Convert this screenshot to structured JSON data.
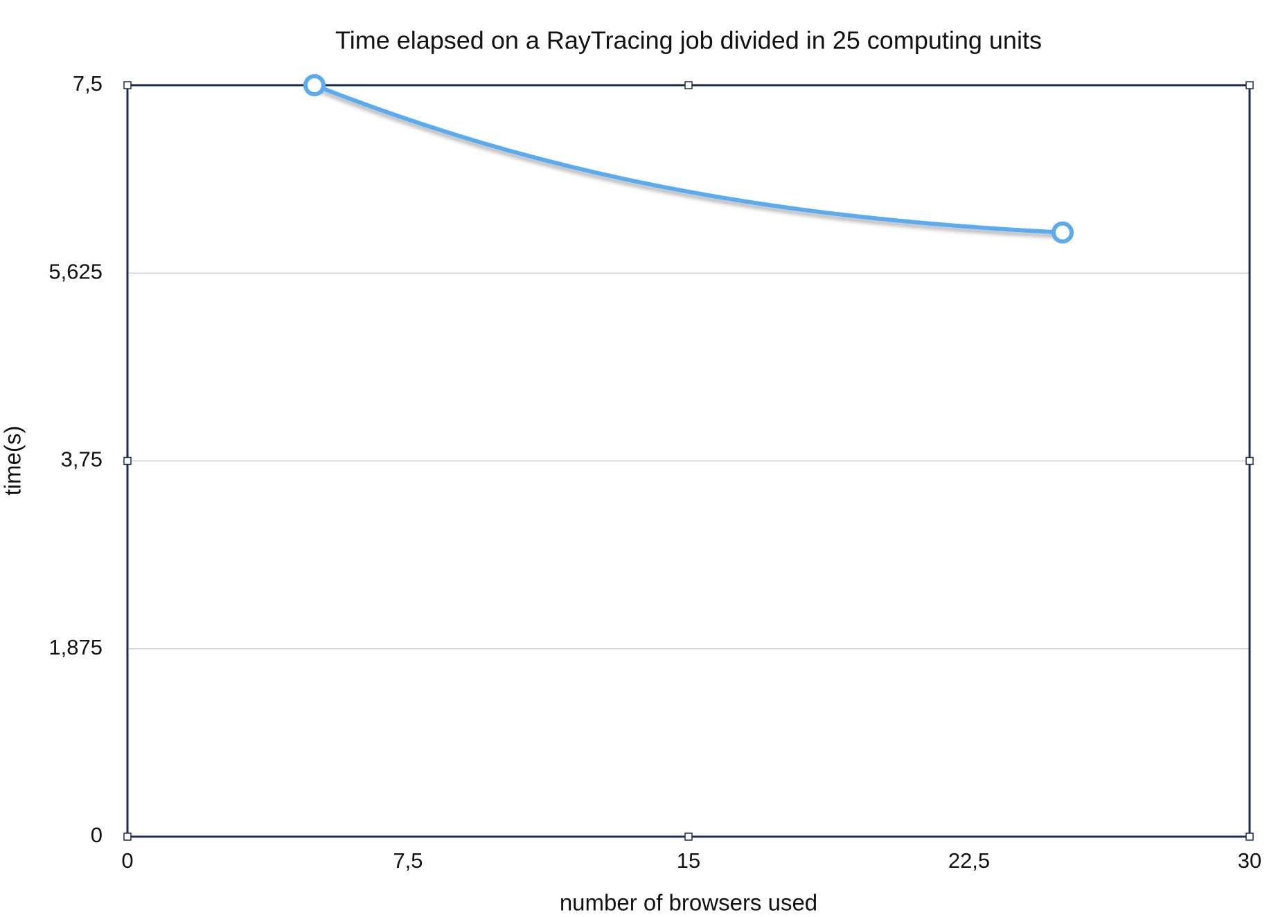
{
  "chart_data": {
    "type": "line",
    "title": "Time elapsed on a RayTracing job divided in 25 computing units",
    "xlabel": "number of browsers used",
    "ylabel": "time(s)",
    "x": [
      5,
      25
    ],
    "values": [
      7.5,
      6.03
    ],
    "color": "#5aabf0",
    "xlim": [
      0,
      30
    ],
    "ylim": [
      0,
      7.5
    ],
    "xticks": [
      0,
      {
        "value": 7.5,
        "label": "7,5"
      },
      15,
      {
        "value": 22.5,
        "label": "22,5"
      },
      30
    ],
    "yticks": [
      0,
      {
        "value": 1.875,
        "label": "1,875"
      },
      {
        "value": 3.75,
        "label": "3,75"
      },
      {
        "value": 5.625,
        "label": "5,625"
      },
      {
        "value": 7.5,
        "label": "7,5"
      }
    ],
    "grid": true
  }
}
